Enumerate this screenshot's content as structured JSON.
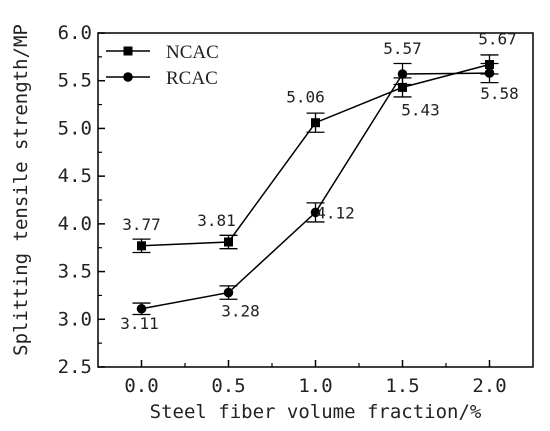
{
  "chart_data": {
    "type": "line",
    "xlabel": "Steel fiber volume fraction/%",
    "ylabel": "Splitting tensile strength/MP",
    "xlim": [
      -0.25,
      2.25
    ],
    "ylim": [
      2.5,
      6.0
    ],
    "x_ticks": [
      "0.0",
      "0.5",
      "1.0",
      "1.5",
      "2.0"
    ],
    "y_ticks": [
      "2.5",
      "3.0",
      "3.5",
      "4.0",
      "4.5",
      "5.0",
      "5.5",
      "6.0"
    ],
    "x": [
      0.0,
      0.5,
      1.0,
      1.5,
      2.0
    ],
    "legend_position": "top-left",
    "grid": false,
    "series": [
      {
        "name": "NCAC",
        "marker": "square",
        "values": [
          3.77,
          3.81,
          5.06,
          5.43,
          5.67
        ],
        "errors": [
          0.07,
          0.07,
          0.1,
          0.1,
          0.1
        ],
        "labels": [
          "3.77",
          "3.81",
          "5.06",
          "5.43",
          "5.67"
        ]
      },
      {
        "name": "RCAC",
        "marker": "circle",
        "values": [
          3.11,
          3.28,
          4.12,
          5.57,
          5.58
        ],
        "errors": [
          0.06,
          0.07,
          0.1,
          0.11,
          0.1
        ],
        "labels": [
          "3.11",
          "3.28",
          "4.12",
          "5.57",
          "5.58"
        ]
      }
    ]
  }
}
